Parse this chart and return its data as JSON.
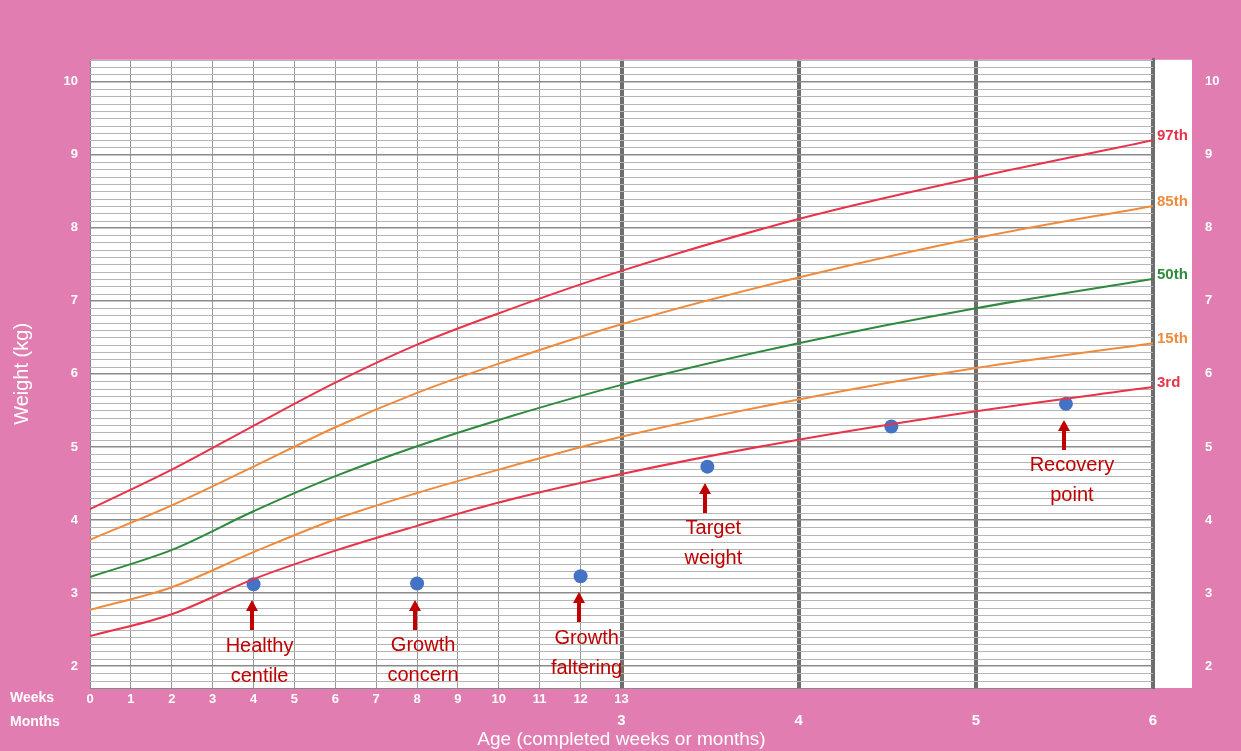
{
  "chart_data": {
    "type": "line",
    "xlabel": "Age (completed weeks or months)",
    "ylabel": "Weight (kg)",
    "xlim": [
      0,
      26
    ],
    "xticks": [
      0,
      1,
      2,
      3,
      4,
      5,
      6,
      7,
      8,
      9,
      10,
      11,
      12,
      13
    ],
    "x2lim": [
      0,
      6
    ],
    "x2ticks": [
      3,
      4,
      5,
      6
    ],
    "ylim": [
      1.7,
      10.3
    ],
    "yticks": [
      2,
      3,
      4,
      5,
      6,
      7,
      8,
      9,
      10
    ],
    "y2lim": [
      1.7,
      10.3
    ],
    "y2ticks": [
      2,
      3,
      4,
      5,
      6,
      7,
      8,
      9,
      10
    ],
    "grid": true,
    "series": [
      {
        "name": "97th",
        "marker": "none",
        "color": "#e8334a",
        "x": [
          0,
          2,
          4,
          6,
          8,
          10,
          13,
          17.33,
          21.67,
          26
        ],
        "values": [
          4.15,
          4.69,
          5.29,
          5.88,
          6.4,
          6.83,
          7.41,
          8.12,
          8.69,
          9.2
        ]
      },
      {
        "name": "85th",
        "marker": "none",
        "color": "#f08a3c",
        "x": [
          0,
          2,
          4,
          6,
          8,
          10,
          13,
          17.33,
          21.67,
          26
        ],
        "values": [
          3.73,
          4.2,
          4.73,
          5.27,
          5.74,
          6.14,
          6.68,
          7.32,
          7.86,
          8.3
        ]
      },
      {
        "name": "50th",
        "marker": "none",
        "color": "#2e8b3e",
        "x": [
          0,
          2,
          4,
          6,
          8,
          10,
          13,
          17.33,
          21.67,
          26
        ],
        "values": [
          3.22,
          3.59,
          4.12,
          4.6,
          5.01,
          5.37,
          5.85,
          6.42,
          6.9,
          7.3
        ]
      },
      {
        "name": "15th",
        "marker": "none",
        "color": "#f08a3c",
        "x": [
          0,
          2,
          4,
          6,
          8,
          10,
          13,
          17.33,
          21.67,
          26
        ],
        "values": [
          2.77,
          3.08,
          3.56,
          4.01,
          4.37,
          4.69,
          5.14,
          5.65,
          6.08,
          6.42
        ]
      },
      {
        "name": "3rd",
        "marker": "none",
        "color": "#e8334a",
        "x": [
          0,
          2,
          4,
          6,
          8,
          10,
          13,
          17.33,
          21.67,
          26
        ],
        "values": [
          2.41,
          2.71,
          3.19,
          3.58,
          3.92,
          4.24,
          4.63,
          5.1,
          5.49,
          5.82
        ]
      },
      {
        "type": "scatter",
        "marker": "circle",
        "color": "#4472c4",
        "x": [
          4,
          8,
          12,
          15.1,
          19.6,
          23.87
        ],
        "values": [
          3.12,
          3.13,
          3.23,
          4.73,
          5.28,
          5.59
        ]
      }
    ],
    "annotations": [
      {
        "text": "Healthy centile",
        "x": 4,
        "y": 3.12
      },
      {
        "text": "Growth concern",
        "x": 8,
        "y": 3.13
      },
      {
        "text": "Growth faltering",
        "x": 12,
        "y": 3.23
      },
      {
        "text": "Target weight",
        "x": 15.1,
        "y": 4.73
      },
      {
        "text": "Recovery point",
        "x": 23.87,
        "y": 5.59
      },
      "Weeks",
      "Months"
    ]
  }
}
